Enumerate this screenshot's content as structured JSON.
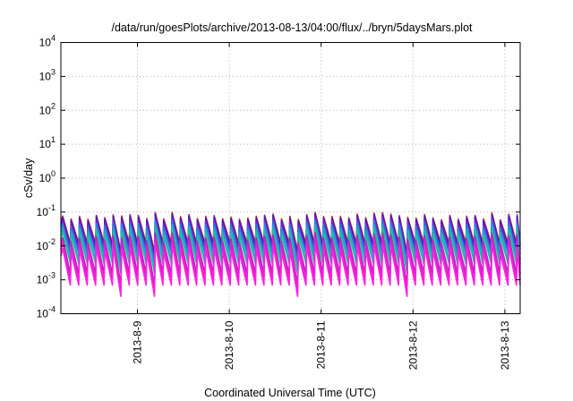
{
  "chart_data": {
    "type": "line",
    "title": "/data/run/goesPlots/archive/2013-08-13/04:00/flux/../bryn/5daysMars.plot",
    "xlabel": "Coordinated Universal Time (UTC)",
    "ylabel": "cSv/day",
    "yscale": "log",
    "ylim": [
      0.0001,
      10000
    ],
    "xlim": [
      "2013-08-08 04:00",
      "2013-08-13 04:00"
    ],
    "y_ticks": [
      {
        "base": "10",
        "exp": "4"
      },
      {
        "base": "10",
        "exp": "3"
      },
      {
        "base": "10",
        "exp": "2"
      },
      {
        "base": "10",
        "exp": "1"
      },
      {
        "base": "10",
        "exp": "0"
      },
      {
        "base": "10",
        "exp": "-1"
      },
      {
        "base": "10",
        "exp": "-2"
      },
      {
        "base": "10",
        "exp": "-3"
      },
      {
        "base": "10",
        "exp": "-4"
      }
    ],
    "x_ticks": [
      "2013-8-9",
      "2013-8-10",
      "2013-8-11",
      "2013-8-12",
      "2013-8-13"
    ],
    "grid": true,
    "legend": "none",
    "pattern": "sawtooth, about 2 hour period",
    "series": [
      {
        "color": "#e0202a",
        "peak": 0.1,
        "trough": 0.012
      },
      {
        "color": "#2020d8",
        "peak": 0.09,
        "trough": 0.01
      },
      {
        "color": "#8020c0",
        "peak": 0.075,
        "trough": 0.008
      },
      {
        "color": "#2080e0",
        "peak": 0.06,
        "trough": 0.006
      },
      {
        "color": "#20a8c8",
        "peak": 0.045,
        "trough": 0.004
      },
      {
        "color": "#20c0a0",
        "peak": 0.035,
        "trough": 0.003
      },
      {
        "color": "#c020c0",
        "peak": 0.025,
        "trough": 0.0015
      },
      {
        "color": "#e020d0",
        "peak": 0.018,
        "trough": 0.001
      },
      {
        "color": "#ff20e0",
        "peak": 0.012,
        "trough": 0.0007
      }
    ]
  }
}
